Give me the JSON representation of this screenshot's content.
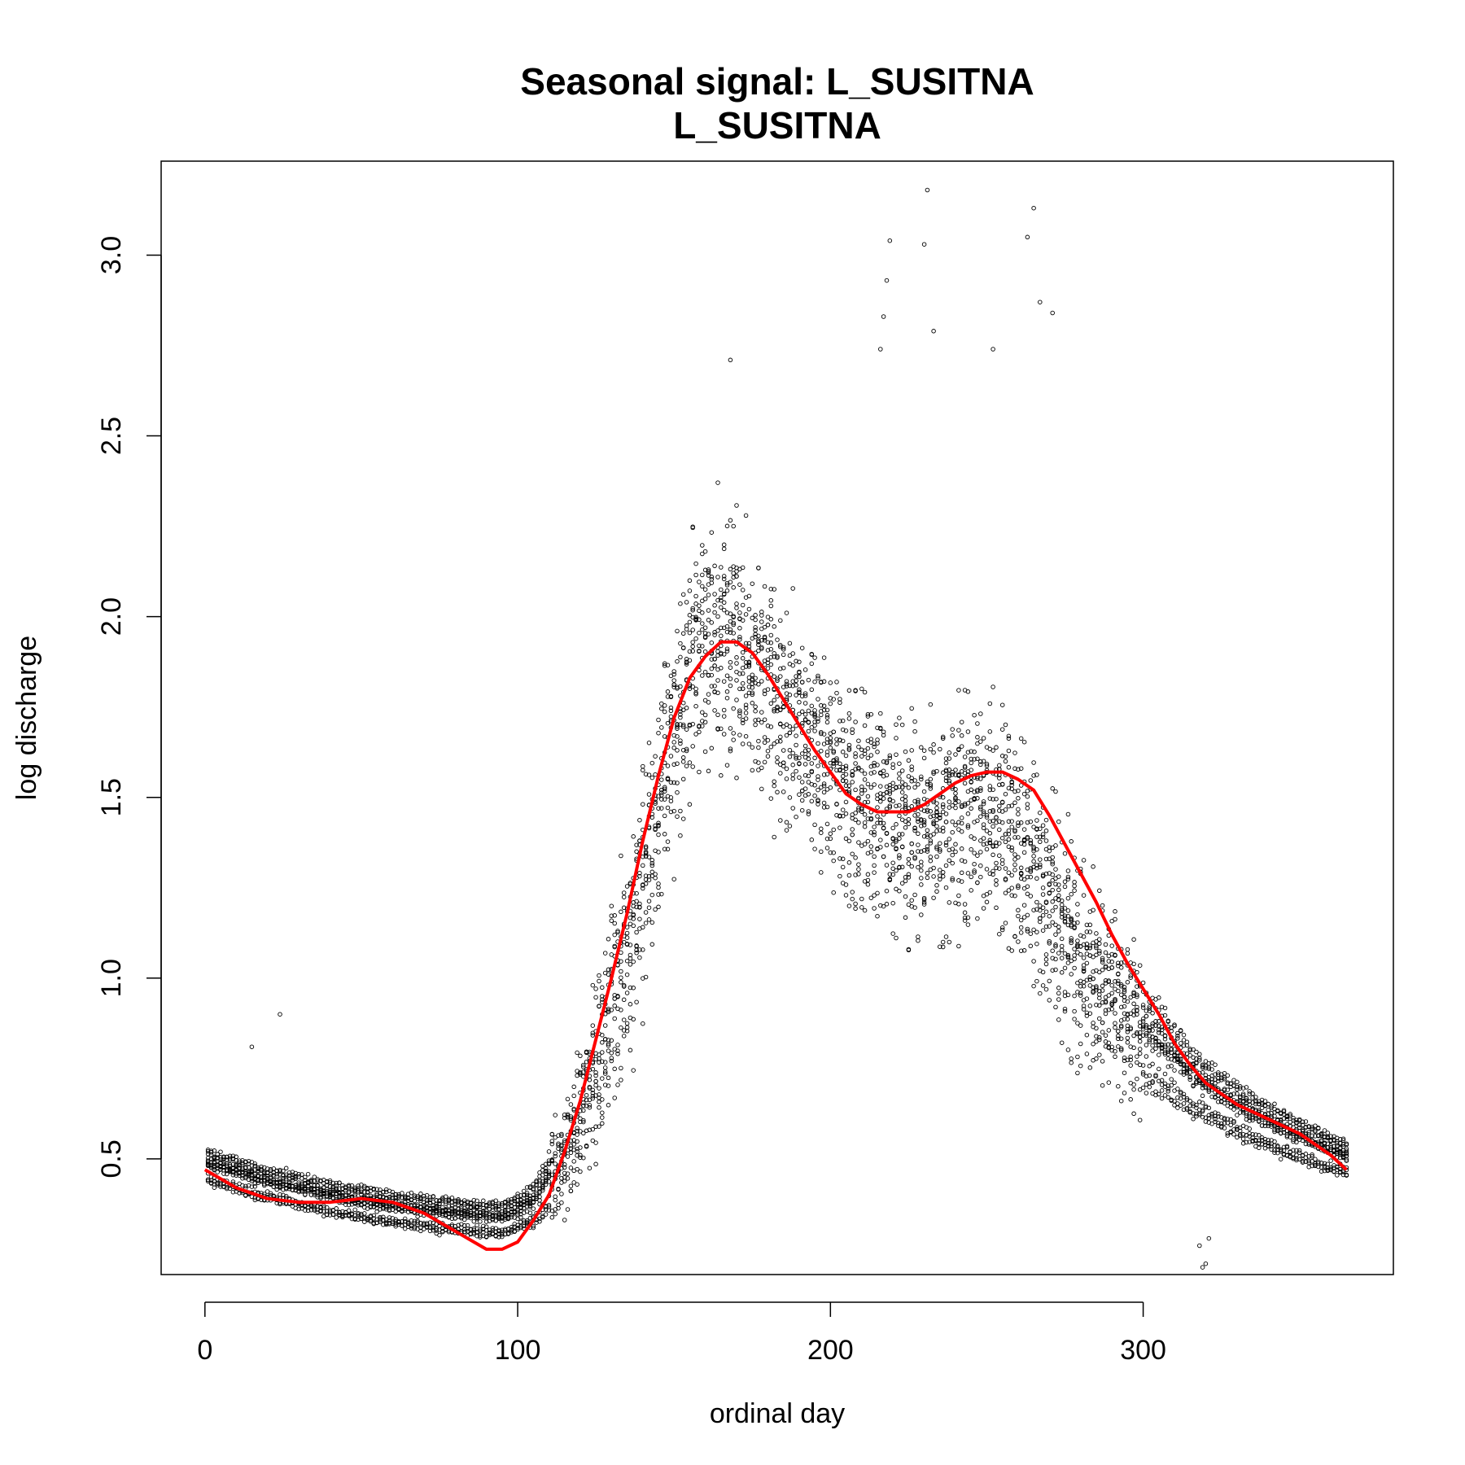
{
  "chart_data": {
    "type": "scatter",
    "title": "Seasonal signal: L_SUSITNA",
    "subtitle": "L_SUSITNA",
    "xlabel": "ordinal day",
    "ylabel": "log discharge",
    "xlim": [
      -14,
      380
    ],
    "ylim": [
      0.18,
      3.26
    ],
    "x_ticks": [
      0,
      100,
      200,
      300
    ],
    "x_tick_labels": [
      "0",
      "100",
      "200",
      "300"
    ],
    "y_ticks": [
      0.5,
      1.0,
      1.5,
      2.0,
      2.5,
      3.0
    ],
    "y_tick_labels": [
      "0.5",
      "1.0",
      "1.5",
      "2.0",
      "2.5",
      "3.0"
    ],
    "grid": false,
    "legend": "none",
    "point_color": "#000000",
    "smooth_color": "#ff0000",
    "series": [
      {
        "kind": "points",
        "description_shown": "daily observations (all years)",
        "baseline": [
          [
            0,
            0.48
          ],
          [
            20,
            0.43
          ],
          [
            40,
            0.39
          ],
          [
            60,
            0.36
          ],
          [
            80,
            0.34
          ],
          [
            95,
            0.33
          ],
          [
            105,
            0.37
          ],
          [
            115,
            0.5
          ],
          [
            125,
            0.75
          ],
          [
            135,
            1.05
          ],
          [
            145,
            1.45
          ],
          [
            155,
            1.85
          ],
          [
            165,
            1.95
          ],
          [
            175,
            1.85
          ],
          [
            185,
            1.72
          ],
          [
            195,
            1.62
          ],
          [
            205,
            1.52
          ],
          [
            215,
            1.45
          ],
          [
            225,
            1.42
          ],
          [
            235,
            1.42
          ],
          [
            245,
            1.44
          ],
          [
            255,
            1.42
          ],
          [
            265,
            1.3
          ],
          [
            275,
            1.12
          ],
          [
            285,
            0.98
          ],
          [
            295,
            0.88
          ],
          [
            305,
            0.8
          ],
          [
            315,
            0.72
          ],
          [
            325,
            0.66
          ],
          [
            335,
            0.61
          ],
          [
            345,
            0.57
          ],
          [
            355,
            0.53
          ],
          [
            365,
            0.5
          ]
        ],
        "spread": [
          [
            0,
            0.08
          ],
          [
            100,
            0.08
          ],
          [
            115,
            0.15
          ],
          [
            130,
            0.3
          ],
          [
            150,
            0.35
          ],
          [
            170,
            0.35
          ],
          [
            200,
            0.3
          ],
          [
            230,
            0.33
          ],
          [
            260,
            0.35
          ],
          [
            290,
            0.28
          ],
          [
            320,
            0.14
          ],
          [
            365,
            0.08
          ]
        ],
        "outliers": [
          [
            15,
            0.81
          ],
          [
            24,
            0.9
          ],
          [
            231,
            3.18
          ],
          [
            265,
            3.13
          ],
          [
            263,
            3.05
          ],
          [
            219,
            3.04
          ],
          [
            230,
            3.03
          ],
          [
            218,
            2.93
          ],
          [
            267,
            2.87
          ],
          [
            271,
            2.84
          ],
          [
            217,
            2.83
          ],
          [
            233,
            2.79
          ],
          [
            216,
            2.74
          ],
          [
            252,
            2.74
          ],
          [
            168,
            2.71
          ],
          [
            318,
            0.26
          ],
          [
            319,
            0.2
          ],
          [
            320,
            0.21
          ],
          [
            321,
            0.28
          ]
        ]
      },
      {
        "kind": "line",
        "description_shown": "seasonal smooth",
        "x": [
          0,
          10,
          20,
          30,
          40,
          50,
          60,
          70,
          80,
          90,
          95,
          100,
          105,
          110,
          115,
          120,
          125,
          130,
          135,
          140,
          145,
          150,
          155,
          160,
          165,
          170,
          175,
          180,
          185,
          190,
          195,
          200,
          205,
          210,
          215,
          220,
          225,
          230,
          235,
          240,
          245,
          250,
          255,
          260,
          265,
          270,
          275,
          280,
          285,
          290,
          295,
          300,
          305,
          310,
          315,
          320,
          330,
          340,
          350,
          360,
          365
        ],
        "y": [
          0.47,
          0.42,
          0.39,
          0.38,
          0.38,
          0.39,
          0.38,
          0.35,
          0.3,
          0.25,
          0.25,
          0.27,
          0.33,
          0.4,
          0.52,
          0.66,
          0.83,
          1.0,
          1.18,
          1.38,
          1.56,
          1.72,
          1.83,
          1.89,
          1.93,
          1.93,
          1.9,
          1.84,
          1.77,
          1.7,
          1.63,
          1.57,
          1.51,
          1.48,
          1.46,
          1.46,
          1.46,
          1.48,
          1.51,
          1.54,
          1.56,
          1.57,
          1.57,
          1.55,
          1.52,
          1.45,
          1.37,
          1.29,
          1.21,
          1.12,
          1.04,
          0.97,
          0.9,
          0.82,
          0.76,
          0.71,
          0.65,
          0.61,
          0.57,
          0.51,
          0.47
        ]
      }
    ]
  }
}
